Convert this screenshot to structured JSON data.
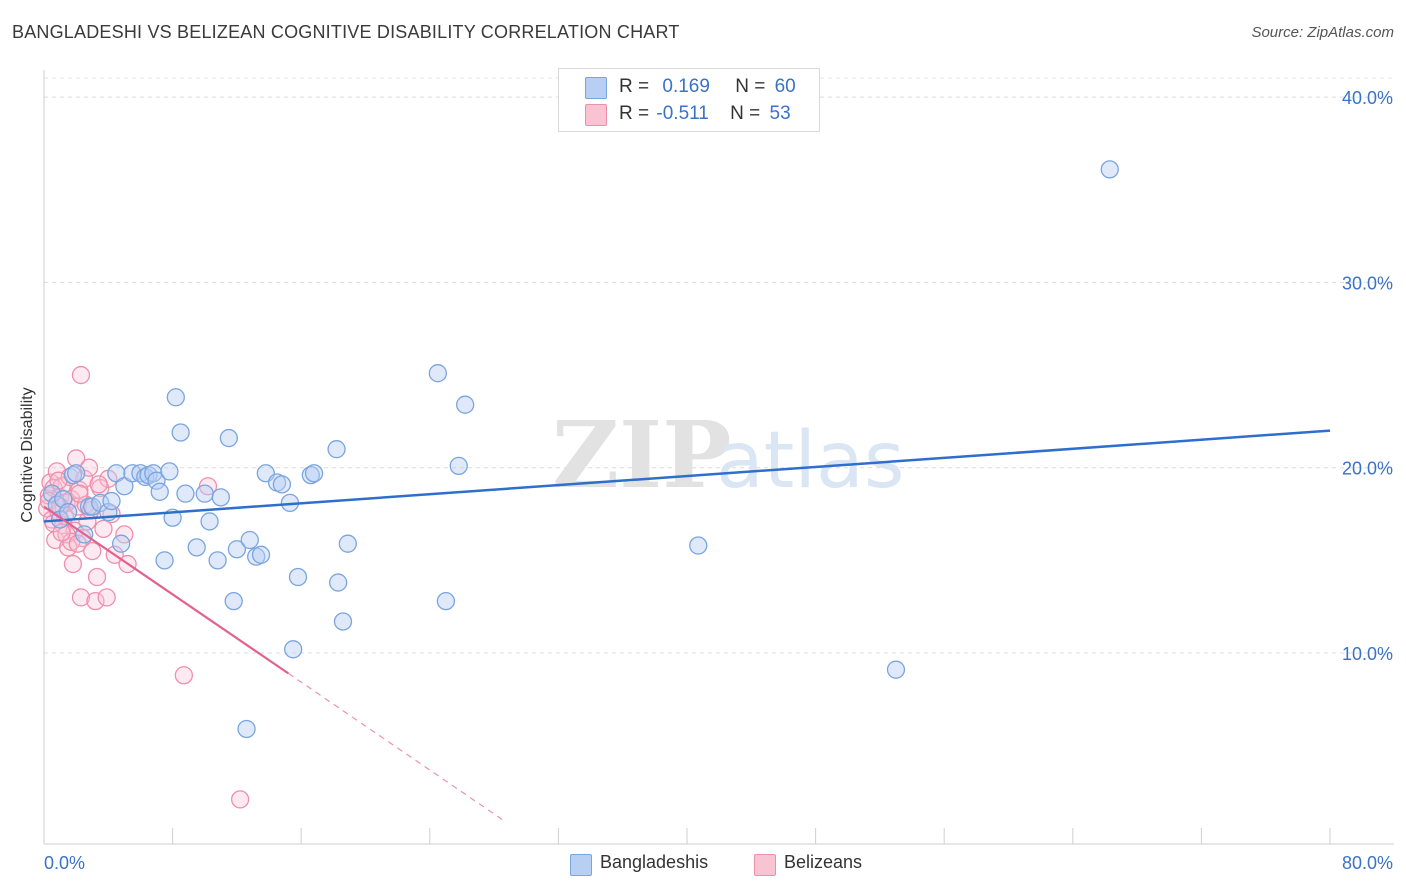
{
  "title": "BANGLADESHI VS BELIZEAN COGNITIVE DISABILITY CORRELATION CHART",
  "source": "Source: ZipAtlas.com",
  "watermark": {
    "zip": "ZIP",
    "atlas": "atlas"
  },
  "legend": {
    "bangladeshis": {
      "r_label": "R =",
      "r_value": "0.169",
      "n_label": "N =",
      "n_value": "60"
    },
    "belizeans": {
      "r_label": "R =",
      "r_value": "-0.511",
      "n_label": "N =",
      "n_value": "53"
    }
  },
  "colors": {
    "blue_fill": "#b7cff3",
    "blue_stroke": "#7aa5de",
    "blue_line": "#2e6fcc",
    "pink_fill": "#f8c4d3",
    "pink_stroke": "#ee8fad",
    "pink_line": "#e2628f",
    "axis_text": "#3a72c8"
  },
  "chart_data": {
    "type": "scatter",
    "title": "BANGLADESHI VS BELIZEAN COGNITIVE DISABILITY CORRELATION CHART",
    "xlabel": "",
    "ylabel": "Cognitive Disability",
    "xlim": [
      0,
      80
    ],
    "ylim": [
      0,
      41
    ],
    "x_tick_labels": [
      "0.0%",
      "80.0%"
    ],
    "y_ticks": [
      10,
      20,
      30,
      40
    ],
    "y_tick_labels": [
      "10.0%",
      "20.0%",
      "30.0%",
      "40.0%"
    ],
    "grid": true,
    "legend": [
      "Bangladeshis",
      "Belizeans"
    ],
    "series": [
      {
        "name": "Bangladeshis",
        "color": "#7aa5de",
        "points": [
          [
            0.5,
            18.6
          ],
          [
            0.8,
            18.0
          ],
          [
            1.0,
            17.2
          ],
          [
            1.2,
            18.3
          ],
          [
            1.5,
            17.6
          ],
          [
            1.8,
            19.6
          ],
          [
            2.0,
            19.7
          ],
          [
            2.5,
            16.4
          ],
          [
            2.8,
            17.9
          ],
          [
            3.0,
            17.9
          ],
          [
            3.5,
            18.1
          ],
          [
            4.0,
            17.6
          ],
          [
            4.2,
            18.2
          ],
          [
            4.5,
            19.7
          ],
          [
            4.8,
            15.9
          ],
          [
            5.0,
            19.0
          ],
          [
            5.5,
            19.7
          ],
          [
            6.0,
            19.7
          ],
          [
            6.3,
            19.5
          ],
          [
            6.5,
            19.6
          ],
          [
            6.8,
            19.7
          ],
          [
            7.0,
            19.3
          ],
          [
            7.2,
            18.7
          ],
          [
            7.5,
            15.0
          ],
          [
            7.8,
            19.8
          ],
          [
            8.0,
            17.3
          ],
          [
            8.2,
            23.8
          ],
          [
            8.5,
            21.9
          ],
          [
            8.8,
            18.6
          ],
          [
            9.5,
            15.7
          ],
          [
            10.0,
            18.6
          ],
          [
            10.3,
            17.1
          ],
          [
            10.8,
            15.0
          ],
          [
            11.0,
            18.4
          ],
          [
            11.5,
            21.6
          ],
          [
            11.8,
            12.8
          ],
          [
            12.0,
            15.6
          ],
          [
            12.6,
            5.9
          ],
          [
            12.8,
            16.1
          ],
          [
            13.2,
            15.2
          ],
          [
            13.5,
            15.3
          ],
          [
            13.8,
            19.7
          ],
          [
            14.5,
            19.2
          ],
          [
            14.8,
            19.1
          ],
          [
            15.3,
            18.1
          ],
          [
            15.5,
            10.2
          ],
          [
            15.8,
            14.1
          ],
          [
            16.6,
            19.6
          ],
          [
            16.8,
            19.7
          ],
          [
            18.2,
            21.0
          ],
          [
            18.3,
            13.8
          ],
          [
            18.6,
            11.7
          ],
          [
            18.9,
            15.9
          ],
          [
            24.5,
            25.1
          ],
          [
            25.0,
            12.8
          ],
          [
            25.8,
            20.1
          ],
          [
            26.2,
            23.4
          ],
          [
            40.7,
            15.8
          ],
          [
            53.0,
            9.1
          ],
          [
            66.3,
            36.1
          ]
        ],
        "trend": {
          "x0": 0,
          "y0": 17.1,
          "x1": 80,
          "y1": 22.0
        }
      },
      {
        "name": "Belizeans",
        "color": "#ee8fad",
        "points": [
          [
            0.2,
            17.8
          ],
          [
            0.3,
            18.5
          ],
          [
            0.4,
            19.2
          ],
          [
            0.5,
            17.2
          ],
          [
            0.6,
            18.9
          ],
          [
            0.7,
            16.1
          ],
          [
            0.8,
            19.8
          ],
          [
            0.9,
            17.6
          ],
          [
            1.0,
            18.4
          ],
          [
            1.1,
            19.0
          ],
          [
            1.2,
            16.9
          ],
          [
            1.3,
            17.4
          ],
          [
            1.4,
            18.1
          ],
          [
            1.5,
            15.7
          ],
          [
            1.6,
            19.5
          ],
          [
            1.7,
            18.3
          ],
          [
            1.8,
            14.8
          ],
          [
            1.9,
            16.6
          ],
          [
            2.0,
            20.5
          ],
          [
            2.1,
            17.9
          ],
          [
            2.2,
            18.8
          ],
          [
            2.3,
            13.0
          ],
          [
            2.4,
            16.2
          ],
          [
            2.5,
            19.4
          ],
          [
            2.6,
            18.0
          ],
          [
            2.7,
            17.1
          ],
          [
            2.8,
            20.0
          ],
          [
            3.0,
            15.5
          ],
          [
            3.2,
            12.8
          ],
          [
            3.3,
            14.1
          ],
          [
            3.5,
            18.9
          ],
          [
            3.7,
            16.7
          ],
          [
            3.9,
            13.0
          ],
          [
            4.0,
            19.4
          ],
          [
            4.2,
            17.5
          ],
          [
            4.4,
            15.3
          ],
          [
            0.3,
            18.2
          ],
          [
            0.6,
            17.0
          ],
          [
            1.0,
            17.9
          ],
          [
            1.4,
            16.4
          ],
          [
            2.2,
            18.6
          ],
          [
            0.9,
            19.3
          ],
          [
            1.7,
            16.0
          ],
          [
            2.9,
            17.7
          ],
          [
            3.4,
            19.1
          ],
          [
            1.1,
            16.5
          ],
          [
            2.1,
            15.9
          ],
          [
            2.3,
            25.0
          ],
          [
            5.0,
            16.4
          ],
          [
            5.2,
            14.8
          ],
          [
            8.7,
            8.8
          ],
          [
            10.2,
            19.0
          ],
          [
            12.2,
            2.1
          ]
        ],
        "trend": {
          "x0": 0,
          "y0": 17.9,
          "x1": 15.2,
          "y1": 8.9
        },
        "trend_extension": {
          "x0": 15.2,
          "y0": 8.9,
          "x1": 28.7,
          "y1": 0.9
        }
      }
    ]
  }
}
